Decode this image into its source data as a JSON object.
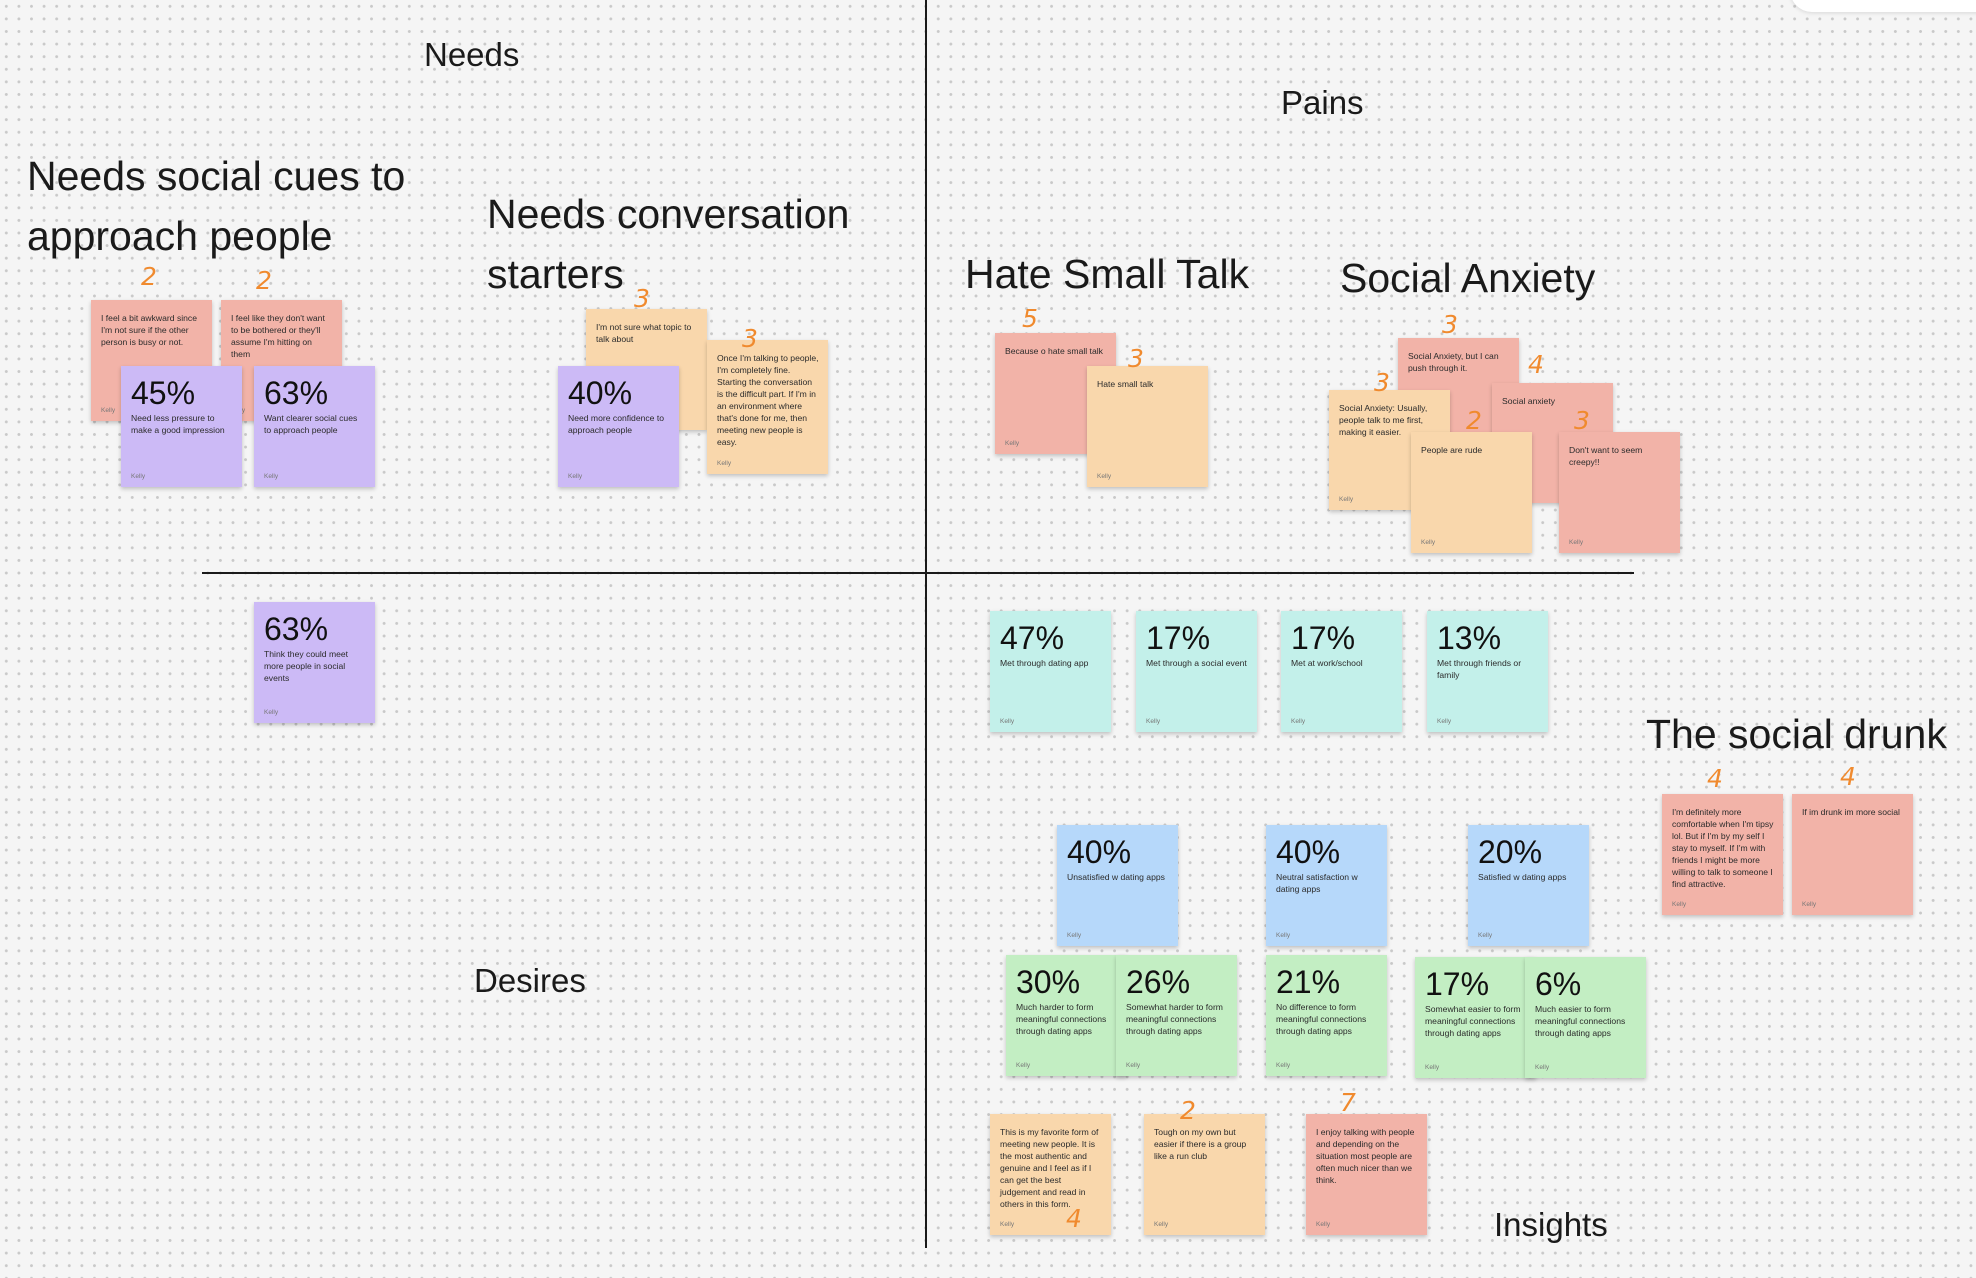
{
  "quadrants": {
    "needs": "Needs",
    "pains": "Pains",
    "desires": "Desires",
    "insights": "Insights"
  },
  "clusters": {
    "social_cues": "Needs social cues to approach people",
    "conversation": "Needs conversation starters",
    "small_talk": "Hate Small Talk",
    "anxiety": "Social Anxiety",
    "drunk": "The social drunk"
  },
  "author": "Kelly",
  "notes": {
    "awkward": "I feel a bit awkward since I'm not sure if the other person is busy or not.",
    "bothered": "I feel like they don't want to be bothered or they'll assume I'm hitting on them",
    "pressure": {
      "stat": "45%",
      "text": "Need less pressure to make a good impression"
    },
    "clearer_cues": {
      "stat": "63%",
      "text": "Want clearer social cues to approach people"
    },
    "topic": "I'm not sure what topic to talk about",
    "once_talking": "Once I'm talking to people, I'm completely fine. Starting the conversation is the difficult part. If I'm in an environment where that's done for me, then meeting new people is easy.",
    "confidence": {
      "stat": "40%",
      "text": "Need more confidence to approach people"
    },
    "hate_because": "Because o hate small talk",
    "hate_small": "Hate small talk",
    "anx_push": "Social Anxiety, but I can push through it.",
    "anx_plain": "Social anxiety",
    "anx_usually": "Social Anxiety: Usually, people talk to me first, making it easier.",
    "rude": "People are rude",
    "creepy": "Don't want to seem creepy!!",
    "social_events": {
      "stat": "63%",
      "text": "Think they could meet more people in social events"
    },
    "met_app": {
      "stat": "47%",
      "text": "Met through dating app"
    },
    "met_event": {
      "stat": "17%",
      "text": "Met through a social event"
    },
    "met_work": {
      "stat": "17%",
      "text": "Met at work/school"
    },
    "met_friends": {
      "stat": "13%",
      "text": "Met through friends or family"
    },
    "more_comfortable": "I'm definitely more comfortable when I'm tipsy lol. But if I'm by my self I stay to myself. If I'm with friends I might be more willing to talk to someone I find attractive.",
    "if_drunk": "If im drunk im more social",
    "unsatisfied": {
      "stat": "40%",
      "text": "Unsatisfied w dating apps"
    },
    "neutral": {
      "stat": "40%",
      "text": "Neutral satisfaction w dating apps"
    },
    "satisfied": {
      "stat": "20%",
      "text": "Satisfied w dating apps"
    },
    "much_harder": {
      "stat": "30%",
      "text": "Much harder to form meaningful connections through dating apps"
    },
    "somewhat_harder": {
      "stat": "26%",
      "text": "Somewhat harder to form meaningful connections through dating apps"
    },
    "no_difference": {
      "stat": "21%",
      "text": "No difference to form meaningful connections through dating apps"
    },
    "somewhat_easier": {
      "stat": "17%",
      "text": "Somewhat easier to form meaningful connections through dating apps"
    },
    "much_easier": {
      "stat": "6%",
      "text": "Much easier to form meaningful connections through dating apps"
    },
    "favorite": "This is my favorite form of meeting new people. It is the most authentic and genuine and I feel as if I can get the best judgement and read in others in this form.",
    "tough": "Tough on my own but easier if there is a group like a run club",
    "enjoy": "I enjoy talking with people and depending on the situation most people are often much nicer than we think."
  },
  "votes": {
    "awkward": "2",
    "bothered": "2",
    "topic": "3",
    "once_talking": "3",
    "hate_because": "5",
    "hate_small": "3",
    "anx_push": "3",
    "anx_plain": "4",
    "anx_usually": "3",
    "rude": "2",
    "creepy": "3",
    "more_comfortable": "4",
    "if_drunk": "4",
    "favorite": "4",
    "tough": "2",
    "enjoy": "7"
  },
  "colors": {
    "salmon": "#f2b3a8",
    "peach": "#f9d7ac",
    "purple": "#ccbaf6",
    "teal": "#c3f0ea",
    "blue": "#b6d8fa",
    "green": "#c3eec3",
    "vote_ink": "#f08a2e"
  }
}
